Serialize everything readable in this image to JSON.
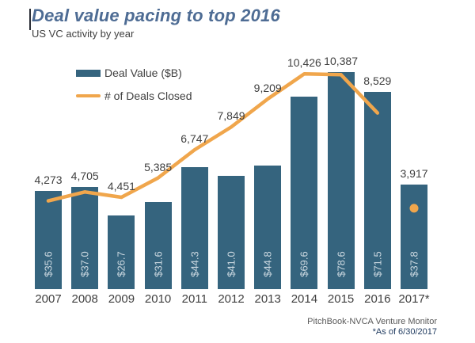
{
  "chart_data": {
    "type": "bar+line",
    "title": "Deal value pacing to top 2016",
    "subtitle": "US VC activity by year",
    "categories": [
      "2007",
      "2008",
      "2009",
      "2010",
      "2011",
      "2012",
      "2013",
      "2014",
      "2015",
      "2016",
      "2017*"
    ],
    "series": [
      {
        "name": "Deal Value ($B)",
        "type": "bar",
        "color": "#35647E",
        "values": [
          35.6,
          37.0,
          26.7,
          31.6,
          44.3,
          41.0,
          44.8,
          69.6,
          78.6,
          71.5,
          37.8
        ],
        "labels": [
          "$35.6",
          "$37.0",
          "$26.7",
          "$31.6",
          "$44.3",
          "$41.0",
          "$44.8",
          "$69.6",
          "$78.6",
          "$71.5",
          "$37.8"
        ],
        "label_placement": "inside-base-rotated"
      },
      {
        "name": "# of Deals Closed",
        "type": "line",
        "color": "#F0A64C",
        "values": [
          4273,
          4705,
          4451,
          5385,
          6747,
          7849,
          9209,
          10426,
          10387,
          8529,
          3917
        ],
        "labels": [
          "4,273",
          "4,705",
          "4,451",
          "5,385",
          "6,747",
          "7,849",
          "9,209",
          "10,426",
          "10,387",
          "8,529",
          "3,917"
        ],
        "note": "2017* value shown as isolated dot, not connected to line"
      }
    ],
    "value_axis_visible": false,
    "gridlines": false,
    "legend_position": "top-left"
  },
  "footer": {
    "source": "PitchBook-NVCA Venture Monitor",
    "as_of": "*As of 6/30/2017"
  }
}
